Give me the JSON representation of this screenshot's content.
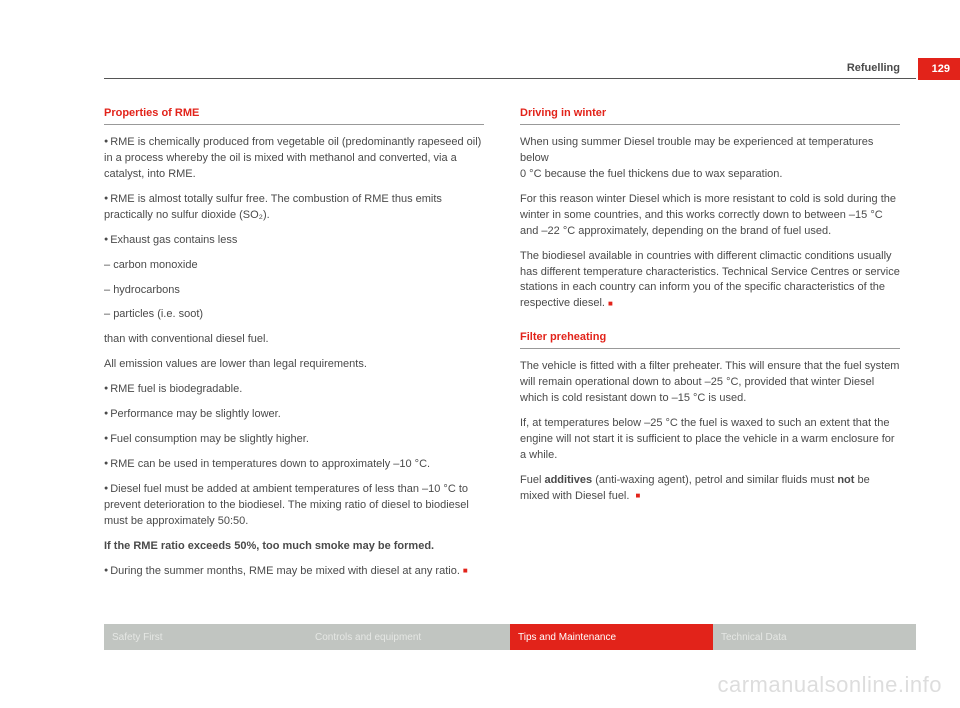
{
  "header": {
    "section": "Refuelling",
    "page_number": "129"
  },
  "colors": {
    "accent": "#e2231a",
    "text": "#4a4a4a",
    "tab_grey_bg": "#c1c5c1",
    "tab_grey_text": "#e5e7e4",
    "background": "#ffffff",
    "watermark": "#dddddd"
  },
  "left": {
    "title": "Properties of RME",
    "p1": "RME is chemically produced from vegetable oil (predominantly rapeseed oil) in a process whereby the oil is mixed with methanol and converted, via a catalyst, into RME.",
    "p2": "RME is almost totally sulfur free. The combustion of RME thus emits practically no sulfur dioxide (SO₂).",
    "p3": "Exhaust gas contains less",
    "p4": "carbon monoxide",
    "p5": "hydrocarbons",
    "p6": "particles (i.e. soot)",
    "p7": "than with conventional diesel fuel.",
    "p8": "All emission values are lower than legal requirements.",
    "p9": "RME fuel is biodegradable.",
    "p10": "Performance may be slightly lower.",
    "p11": "Fuel consumption may be slightly higher.",
    "p12": "RME can be used in temperatures down to approximately –10 °C.",
    "p13": "Diesel fuel must be added at ambient temperatures of less than –10 °C to prevent deterioration to the biodiesel.  The mixing ratio of diesel to biodiesel must be approximately 50:50.",
    "p14": "If the RME ratio exceeds 50%, too much smoke may be formed.",
    "p15": "During the summer months, RME may be mixed with diesel at any ratio."
  },
  "right": {
    "title1": "Driving in winter",
    "r1": "When using summer Diesel trouble may be experienced at temperatures below",
    "r1b": "0 °C because the fuel thickens due to wax separation.",
    "r2": "For this reason winter Diesel which is more resistant to cold is sold during the winter in some countries, and this works correctly down to between –15 °C and –22 °C approximately, depending on the brand of fuel used.",
    "r3": "The biodiesel available in countries with different climactic conditions usually has different temperature characteristics. Technical Service Centres or service stations in each country can inform you of the specific characteristics of the respective diesel.",
    "title2": "Filter preheating",
    "r4": "The vehicle is fitted with a filter preheater. This will ensure that the fuel system will remain operational down to about –25 °C, provided that winter Diesel which is cold resistant down to –15 °C is used.",
    "r5": "If, at temperatures below –25 °C the fuel is waxed to such an extent that the engine will not start it is sufficient to place the vehicle in a warm enclosure for a while.",
    "r6a": "Fuel ",
    "r6b": "additives",
    "r6c": " (anti-waxing agent), petrol and similar fluids must ",
    "r6d": "not",
    "r6e": " be mixed with Diesel fuel."
  },
  "footer": {
    "tab1": "Safety First",
    "tab2": "Controls and equipment",
    "tab3": "Tips and Maintenance",
    "tab4": "Technical Data"
  },
  "watermark": "carmanualsonline.info"
}
